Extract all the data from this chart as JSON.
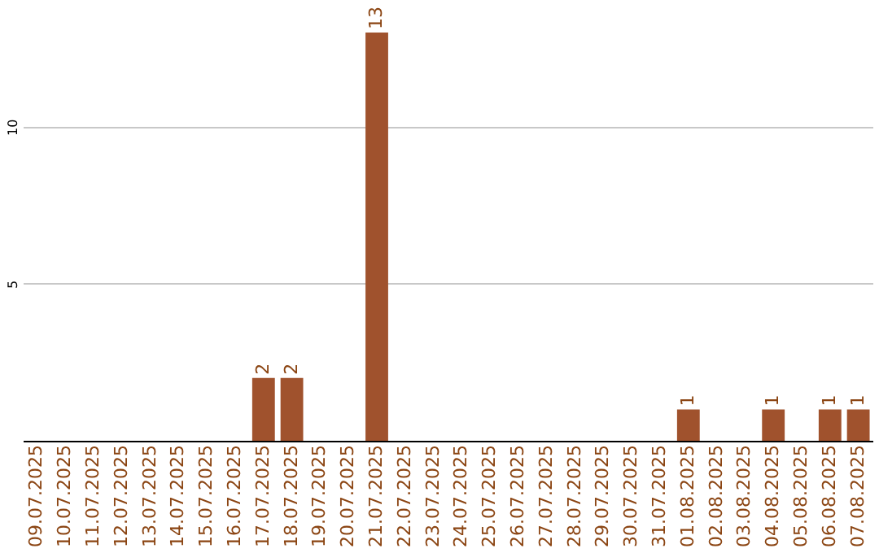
{
  "chart_data": {
    "type": "bar",
    "categories": [
      "09.07.2025",
      "10.07.2025",
      "11.07.2025",
      "12.07.2025",
      "13.07.2025",
      "14.07.2025",
      "15.07.2025",
      "16.07.2025",
      "17.07.2025",
      "18.07.2025",
      "19.07.2025",
      "20.07.2025",
      "21.07.2025",
      "22.07.2025",
      "23.07.2025",
      "24.07.2025",
      "25.07.2025",
      "26.07.2025",
      "27.07.2025",
      "28.07.2025",
      "29.07.2025",
      "30.07.2025",
      "31.07.2025",
      "01.08.2025",
      "02.08.2025",
      "03.08.2025",
      "04.08.2025",
      "05.08.2025",
      "06.08.2025",
      "07.08.2025"
    ],
    "values": [
      0,
      0,
      0,
      0,
      0,
      0,
      0,
      0,
      2,
      2,
      0,
      0,
      13,
      0,
      0,
      0,
      0,
      0,
      0,
      0,
      0,
      0,
      0,
      1,
      0,
      0,
      1,
      0,
      1,
      1
    ],
    "value_labels": [
      null,
      null,
      null,
      null,
      null,
      null,
      null,
      null,
      "2",
      "2",
      null,
      null,
      "13",
      null,
      null,
      null,
      null,
      null,
      null,
      null,
      null,
      null,
      null,
      "1",
      null,
      null,
      "1",
      null,
      "1",
      "1"
    ],
    "color": "#a0522d",
    "ylim": [
      0,
      13
    ],
    "yticks": [
      5,
      10
    ],
    "grid": "y"
  }
}
